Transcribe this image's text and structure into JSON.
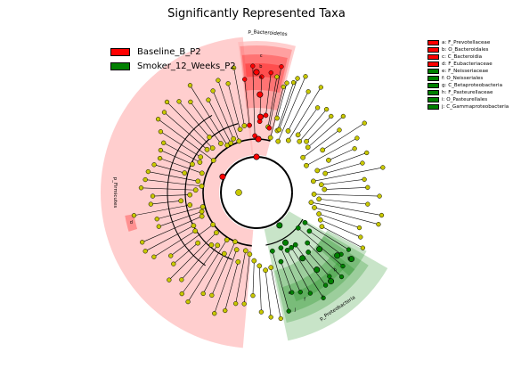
{
  "chart_data": {
    "type": "cladogram",
    "title": "Significantly Represented Taxa",
    "groups": [
      {
        "name": "Baseline_B_P2",
        "color": "#ff0000",
        "shade": "#ffb3b3"
      },
      {
        "name": "Smoker_12_Weeks_P2",
        "color": "#008000",
        "shade": "#9acd9a"
      }
    ],
    "node_color_default": "#c8c800",
    "clades": [
      {
        "name": "p_Bacteroidetes",
        "group": 0,
        "level": "phylum"
      },
      {
        "name": "p_Firmicutes",
        "group": 0,
        "level": "phylum"
      },
      {
        "name": "p_Proteobacteria",
        "group": 1,
        "level": "phylum"
      }
    ],
    "taxa": [
      {
        "letter": "a",
        "name": "F_Prevotellaceae",
        "group": 0
      },
      {
        "letter": "b",
        "name": "O_Bacteroidales",
        "group": 0
      },
      {
        "letter": "c",
        "name": "C_Bacteroidia",
        "group": 0
      },
      {
        "letter": "d",
        "name": "F_Eubacteriaceae",
        "group": 0
      },
      {
        "letter": "e",
        "name": "F_Neisseriaceae",
        "group": 1
      },
      {
        "letter": "f",
        "name": "O_Neisseriales",
        "group": 1
      },
      {
        "letter": "g",
        "name": "C_Betaproteobacteria",
        "group": 1
      },
      {
        "letter": "h",
        "name": "F_Pasteurellaceae",
        "group": 1
      },
      {
        "letter": "i",
        "name": "O_Pasteurellales",
        "group": 1
      },
      {
        "letter": "j",
        "name": "C_Gammaproteobacteria",
        "group": 1
      }
    ]
  }
}
